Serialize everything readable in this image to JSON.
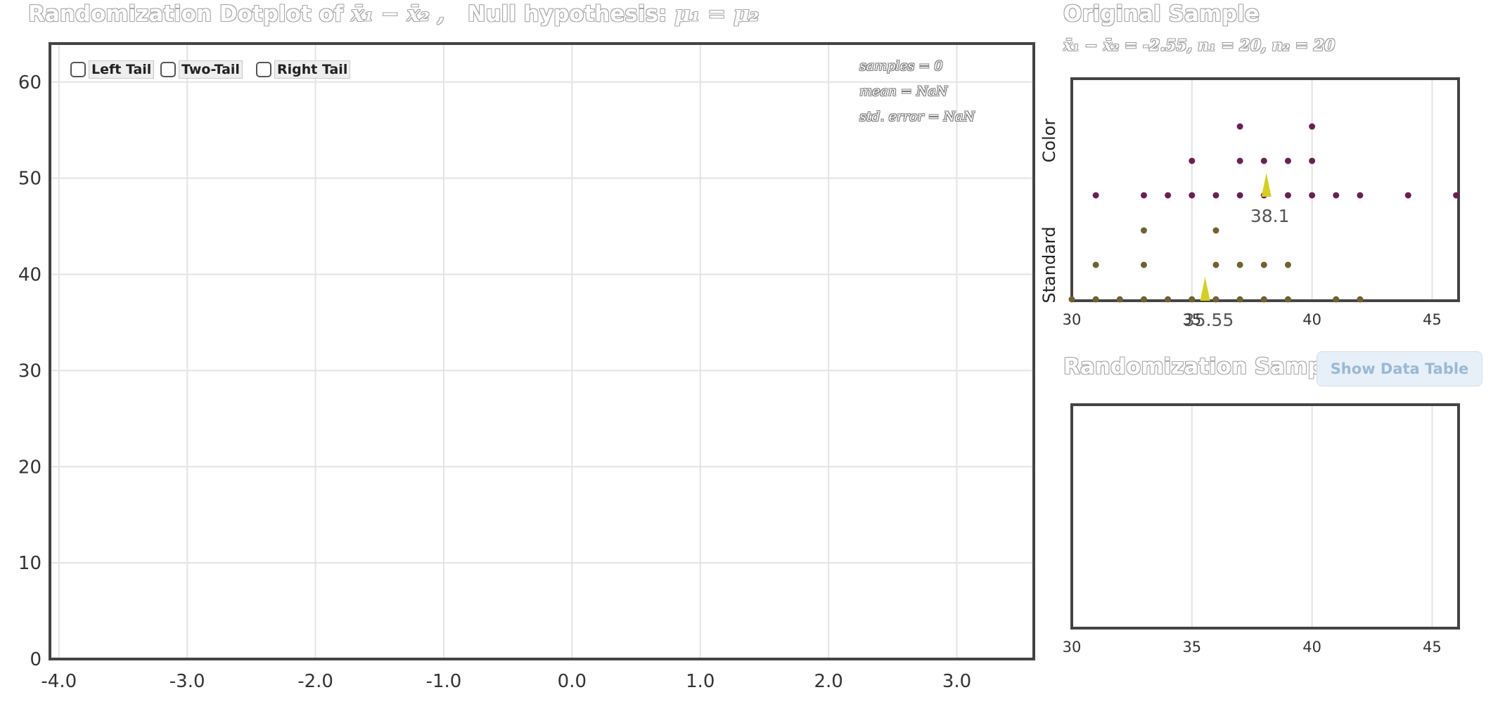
{
  "main_title": {
    "prefix": "Randomization Dotplot of",
    "stat": "x̄₁ − x̄₂ ,",
    "null_label": "Null hypothesis:",
    "null_math": "μ₁ = μ₂"
  },
  "tails": {
    "left": "Left Tail",
    "two": "Two-Tail",
    "right": "Right Tail"
  },
  "stats": {
    "samples": "samples = 0",
    "mean": "mean = NaN",
    "std_error": "std. error = NaN"
  },
  "original_sample": {
    "title": "Original Sample",
    "summary": "x̄₁ − x̄₂ = -2.55, n₁ = 20, n₂ = 20"
  },
  "randomization_sample": {
    "title": "Randomization Sample",
    "button": "Show Data Table"
  },
  "colors": {
    "color_group": "#6a1f52",
    "standard_group": "#6e6330",
    "marker": "#d4cf22",
    "frame": "#444444",
    "grid": "#e3e3e3"
  },
  "chart_data": [
    {
      "type": "scatter",
      "title": "Randomization Dotplot of x̄₁ − x̄₂",
      "xlabel": "",
      "ylabel": "",
      "xlim": [
        -4.07,
        3.6
      ],
      "ylim": [
        0,
        64
      ],
      "xticks": [
        -4.0,
        -3.0,
        -2.0,
        -1.0,
        0.0,
        1.0,
        2.0,
        3.0
      ],
      "xtick_labels": [
        "-4.0",
        "-3.0",
        "-2.0",
        "-1.0",
        "0.0",
        "1.0",
        "2.0",
        "3.0"
      ],
      "yticks": [
        0,
        10,
        20,
        30,
        40,
        50,
        60
      ],
      "ytick_labels": [
        "0",
        "10",
        "20",
        "30",
        "40",
        "50",
        "60"
      ],
      "grid": true,
      "points": []
    },
    {
      "type": "scatter",
      "title": "Original Sample",
      "xlim": [
        30,
        46.1
      ],
      "xticks": [
        30,
        35,
        40,
        45
      ],
      "xtick_labels": [
        "30",
        "35",
        "40",
        "45"
      ],
      "grid": true,
      "series": [
        {
          "name": "Color",
          "mean": 38.1,
          "mean_label": "38.1",
          "values": [
            31,
            33,
            34,
            35,
            36,
            37,
            38,
            39,
            40,
            41,
            42,
            44,
            46,
            35,
            37,
            38,
            39,
            40,
            37,
            40
          ]
        },
        {
          "name": "Standard",
          "mean": 35.55,
          "mean_label": "35.55",
          "values": [
            30,
            31,
            32,
            33,
            34,
            35,
            36,
            37,
            38,
            39,
            41,
            42,
            31,
            33,
            36,
            37,
            38,
            39,
            33,
            36
          ]
        }
      ]
    },
    {
      "type": "scatter",
      "title": "Randomization Sample",
      "xlim": [
        30,
        46.1
      ],
      "xticks": [
        30,
        35,
        40,
        45
      ],
      "xtick_labels": [
        "30",
        "35",
        "40",
        "45"
      ],
      "grid": true,
      "points": []
    }
  ]
}
